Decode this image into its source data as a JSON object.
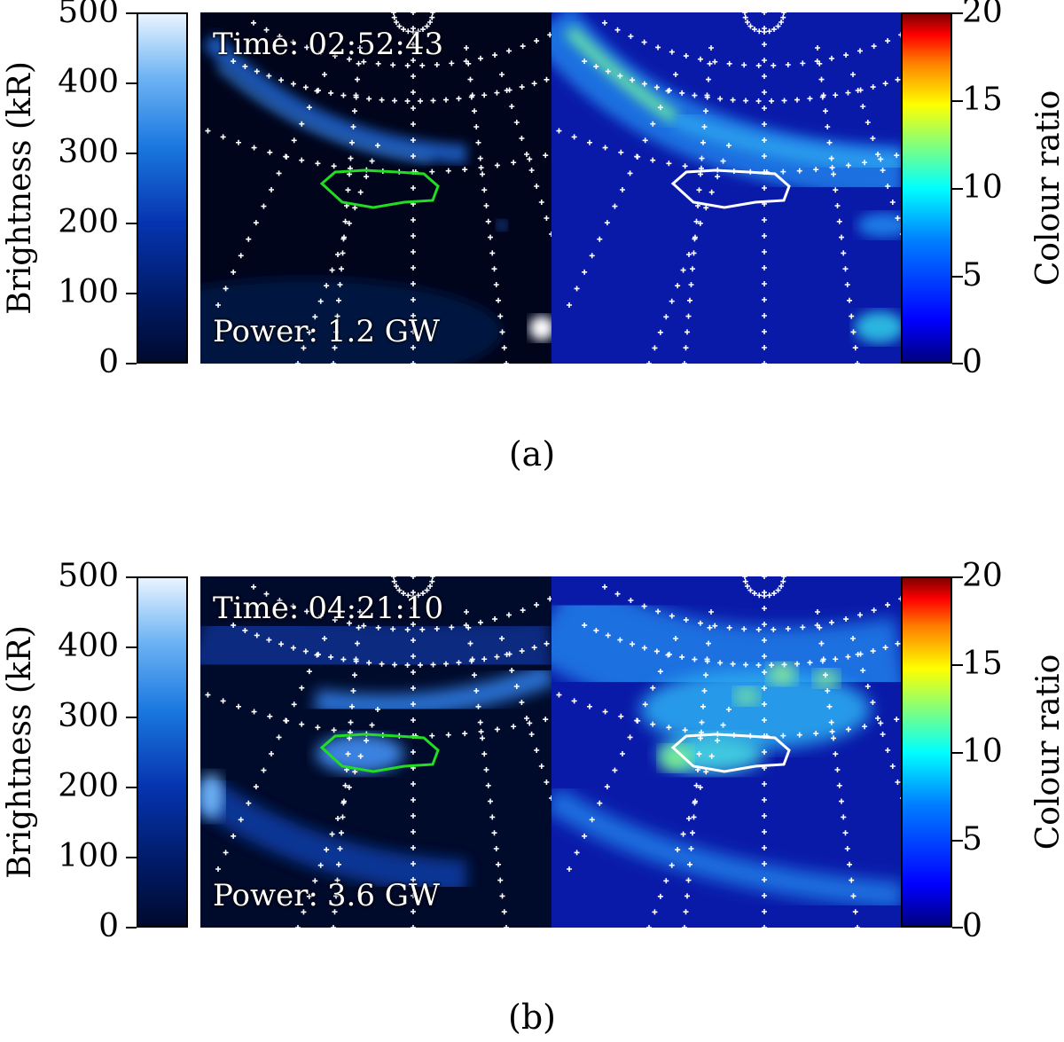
{
  "colorbars": {
    "left": {
      "label": "Brightness (kR)",
      "ticks": [
        "500",
        "400",
        "300",
        "200",
        "100",
        "0"
      ],
      "range": [
        0,
        500
      ],
      "colormap": "dark-blue-to-white"
    },
    "right": {
      "label": "Colour ratio",
      "ticks": [
        "20",
        "15",
        "10",
        "5",
        "0"
      ],
      "range": [
        0,
        20
      ],
      "colormap": "jet"
    }
  },
  "panels": [
    {
      "caption": "(a)",
      "time_label": "Time:",
      "time_value": "02:52:43",
      "power_label": "Power:",
      "power_value": "1.2 GW",
      "outline_colors": {
        "left": "#22dd22",
        "right": "#ffffff"
      }
    },
    {
      "caption": "(b)",
      "time_label": "Time:",
      "time_value": "04:21:10",
      "power_label": "Power:",
      "power_value": "3.6 GW",
      "outline_colors": {
        "left": "#22dd22",
        "right": "#ffffff"
      }
    }
  ]
}
